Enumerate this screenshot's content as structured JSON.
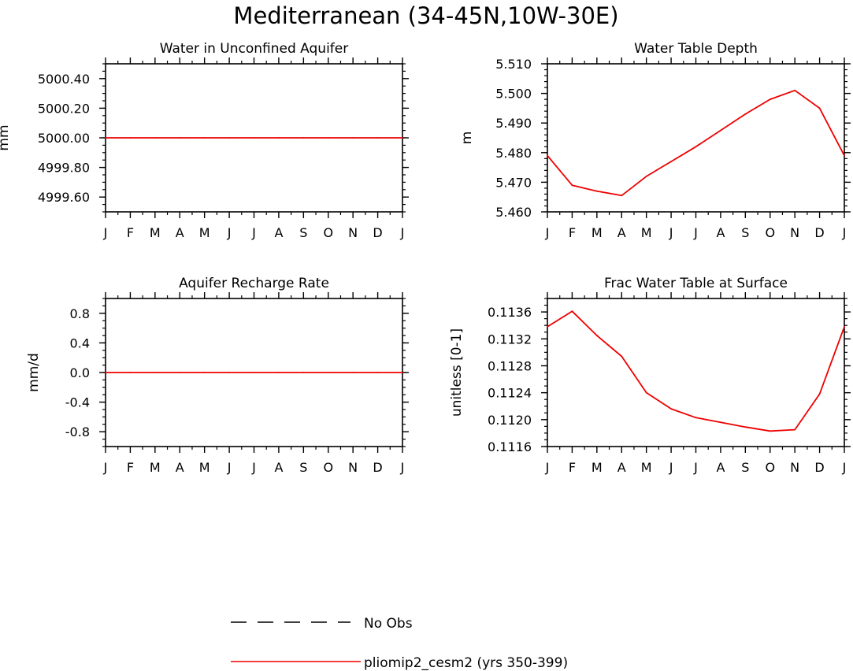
{
  "title": "Mediterranean (34-45N,10W-30E)",
  "colors": {
    "model": "#ee0000",
    "obs": "#000000",
    "frame": "#000000"
  },
  "chart_data": [
    {
      "type": "line",
      "title": "Water in Unconfined Aquifer",
      "xlabel": "",
      "ylabel": "mm",
      "categories": [
        "J",
        "F",
        "M",
        "A",
        "M",
        "J",
        "J",
        "A",
        "S",
        "O",
        "N",
        "D",
        "J"
      ],
      "ylim": [
        4999.5,
        5000.5
      ],
      "yticks": [
        4999.6,
        4999.8,
        5000.0,
        5000.2,
        5000.4
      ],
      "ytick_labels": [
        "4999.60",
        "4999.80",
        "5000.00",
        "5000.20",
        "5000.40"
      ],
      "yminor": 0.05,
      "series": [
        {
          "name": "pliomip2_cesm2 (yrs 350-399)",
          "values": [
            5000,
            5000,
            5000,
            5000,
            5000,
            5000,
            5000,
            5000,
            5000,
            5000,
            5000,
            5000,
            5000
          ]
        }
      ]
    },
    {
      "type": "line",
      "title": "Water Table Depth",
      "xlabel": "",
      "ylabel": "m",
      "categories": [
        "J",
        "F",
        "M",
        "A",
        "M",
        "J",
        "J",
        "A",
        "S",
        "O",
        "N",
        "D",
        "J"
      ],
      "ylim": [
        5.46,
        5.51
      ],
      "yticks": [
        5.46,
        5.47,
        5.48,
        5.49,
        5.5,
        5.51
      ],
      "ytick_labels": [
        "5.460",
        "5.470",
        "5.480",
        "5.490",
        "5.500",
        "5.510"
      ],
      "yminor": 0.002,
      "series": [
        {
          "name": "pliomip2_cesm2 (yrs 350-399)",
          "values": [
            5.479,
            5.469,
            5.467,
            5.4655,
            5.472,
            5.477,
            5.482,
            5.4875,
            5.493,
            5.498,
            5.501,
            5.495,
            5.479
          ]
        }
      ]
    },
    {
      "type": "line",
      "title": "Aquifer Recharge Rate",
      "xlabel": "",
      "ylabel": "mm/d",
      "categories": [
        "J",
        "F",
        "M",
        "A",
        "M",
        "J",
        "J",
        "A",
        "S",
        "O",
        "N",
        "D",
        "J"
      ],
      "ylim": [
        -1.0,
        1.0
      ],
      "yticks": [
        -0.8,
        -0.4,
        0.0,
        0.4,
        0.8
      ],
      "ytick_labels": [
        "-0.8",
        "-0.4",
        "0.0",
        "0.4",
        "0.8"
      ],
      "yminor": 0.1,
      "series": [
        {
          "name": "pliomip2_cesm2 (yrs 350-399)",
          "values": [
            0,
            0,
            0,
            0,
            0,
            0,
            0,
            0,
            0,
            0,
            0,
            0,
            0
          ]
        }
      ]
    },
    {
      "type": "line",
      "title": "Frac Water Table at Surface",
      "xlabel": "",
      "ylabel": "unitless [0-1]",
      "categories": [
        "J",
        "F",
        "M",
        "A",
        "M",
        "J",
        "J",
        "A",
        "S",
        "O",
        "N",
        "D",
        "J"
      ],
      "ylim": [
        0.1116,
        0.1138
      ],
      "yticks": [
        0.1116,
        0.112,
        0.1124,
        0.1128,
        0.1132,
        0.1136
      ],
      "ytick_labels": [
        "0.1116",
        "0.1120",
        "0.1124",
        "0.1128",
        "0.1132",
        "0.1136"
      ],
      "yminor": 0.0001,
      "series": [
        {
          "name": "pliomip2_cesm2 (yrs 350-399)",
          "values": [
            0.11338,
            0.11361,
            0.11325,
            0.11294,
            0.1124,
            0.11216,
            0.11203,
            0.11196,
            0.11189,
            0.11183,
            0.11185,
            0.11238,
            0.11338
          ]
        }
      ]
    }
  ],
  "legend": {
    "items": [
      {
        "label": "No Obs",
        "style": "dashed"
      },
      {
        "label": "pliomip2_cesm2 (yrs 350-399)",
        "style": "solid"
      }
    ]
  }
}
